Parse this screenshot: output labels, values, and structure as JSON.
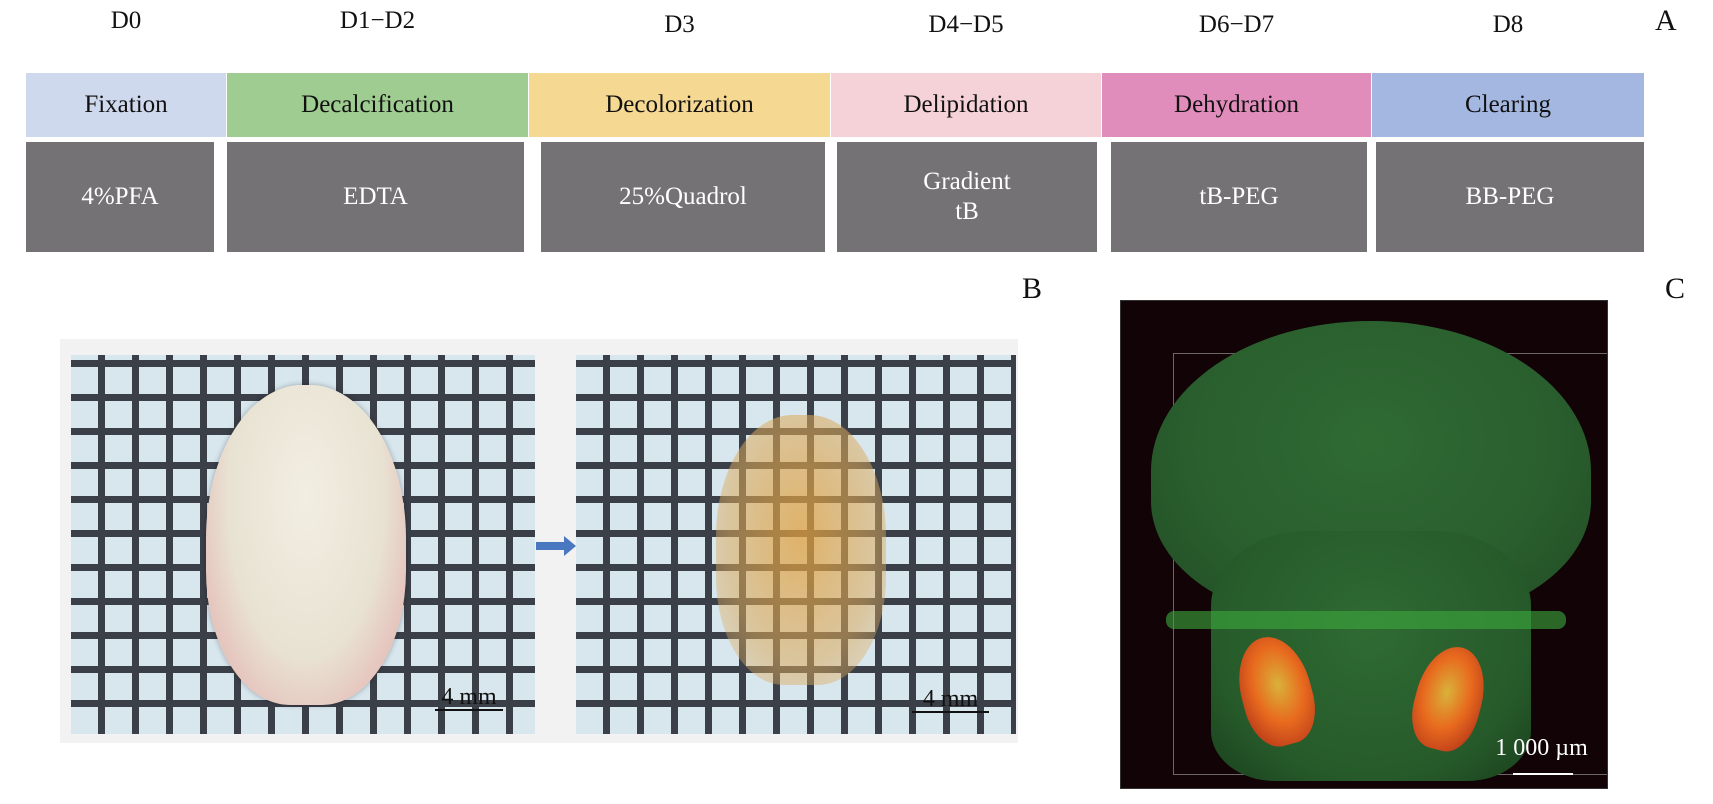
{
  "panel_labels": {
    "a": "A",
    "b": "B",
    "c": "C"
  },
  "timeline": [
    {
      "day": "D0",
      "stage": "Fixation",
      "reagent": "4%PFA",
      "color": "#cfd9ee"
    },
    {
      "day": "D1−D2",
      "stage": "Decalcification",
      "reagent": "EDTA",
      "color": "#9fcc90"
    },
    {
      "day": "D3",
      "stage": "Decolorization",
      "reagent": "25%Quadrol",
      "color": "#f5d891"
    },
    {
      "day": "D4−D5",
      "stage": "Delipidation",
      "reagent_line1": "Gradient",
      "reagent_line2": "tB",
      "color": "#f5d2d8"
    },
    {
      "day": "D6−D7",
      "stage": "Dehydration",
      "reagent": "tB-PEG",
      "color": "#e18dbc"
    },
    {
      "day": "D8",
      "stage": "Clearing",
      "reagent": "BB-PEG",
      "color": "#a3b7e0"
    }
  ],
  "panel_b": {
    "scale_left": "4 mm",
    "scale_right": "4 mm"
  },
  "panel_c": {
    "scale": "1 000 µm"
  }
}
